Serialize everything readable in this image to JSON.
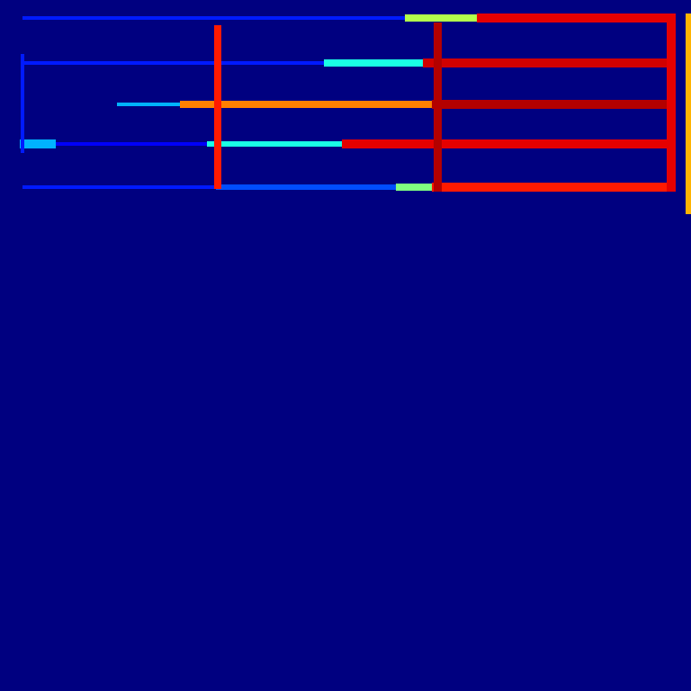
{
  "chart_data": {
    "type": "heatmap",
    "xlim": [
      0,
      768
    ],
    "ylim": [
      0,
      768
    ],
    "tick_labels": false,
    "clim": [
      0,
      1
    ],
    "cells": [
      [
        25,
        18,
        450,
        22,
        0.15
      ],
      [
        450,
        16,
        530,
        24,
        0.55
      ],
      [
        530,
        15,
        748,
        25,
        0.9
      ],
      [
        25,
        68,
        360,
        72,
        0.15
      ],
      [
        360,
        66,
        470,
        74,
        0.4
      ],
      [
        470,
        65,
        748,
        75,
        0.92
      ],
      [
        130,
        114,
        200,
        118,
        0.3
      ],
      [
        200,
        112,
        480,
        120,
        0.75
      ],
      [
        480,
        111,
        748,
        121,
        0.95
      ],
      [
        22,
        155,
        62,
        165,
        0.3
      ],
      [
        62,
        158,
        230,
        162,
        0.12
      ],
      [
        230,
        157,
        380,
        163,
        0.4
      ],
      [
        380,
        155,
        748,
        165,
        0.9
      ],
      [
        25,
        206,
        240,
        210,
        0.15
      ],
      [
        240,
        205,
        440,
        211,
        0.2
      ],
      [
        440,
        204,
        480,
        212,
        0.5
      ],
      [
        480,
        203,
        748,
        213,
        0.85
      ],
      [
        238,
        28,
        246,
        210,
        0.85
      ],
      [
        482,
        25,
        491,
        213,
        0.95
      ],
      [
        741,
        15,
        751,
        213,
        0.9
      ],
      [
        23,
        60,
        27,
        170,
        0.15
      ],
      [
        762,
        15,
        768,
        238,
        0.7
      ]
    ]
  }
}
